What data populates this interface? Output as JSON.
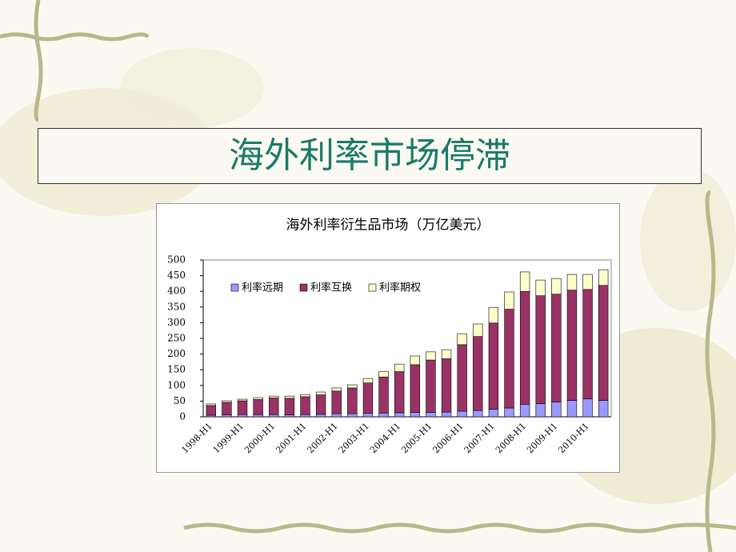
{
  "slide": {
    "title": "海外利率市场停滞"
  },
  "chart_data": {
    "type": "stacked_bar",
    "title": "海外利率衍生品市场（万亿美元）",
    "categories": [
      "1998-H1",
      null,
      "1999-H1",
      null,
      "2000-H1",
      null,
      "2001-H1",
      null,
      "2002-H1",
      null,
      "2003-H1",
      null,
      "2004-H1",
      null,
      "2005-H1",
      null,
      "2006-H1",
      null,
      "2007-H1",
      null,
      "2008-H1",
      null,
      "2009-H1",
      null,
      "2010-H1",
      null
    ],
    "series": [
      {
        "name": "利率远期",
        "color": "#9999ff",
        "values": [
          5,
          6,
          7,
          7,
          7,
          6,
          7,
          8,
          10,
          10,
          11,
          12,
          13,
          14,
          14,
          15,
          18,
          20,
          24,
          28,
          40,
          42,
          47,
          52,
          57,
          52
        ]
      },
      {
        "name": "利率互换",
        "color": "#993366",
        "values": [
          31,
          40,
          44,
          48,
          53,
          53,
          57,
          62,
          72,
          82,
          97,
          115,
          131,
          152,
          167,
          170,
          212,
          236,
          275,
          315,
          360,
          344,
          344,
          352,
          349,
          367
        ]
      },
      {
        "name": "利率期权",
        "color": "#ffffcc",
        "values": [
          5,
          5,
          5,
          6,
          6,
          7,
          7,
          9,
          10,
          10,
          14,
          18,
          24,
          28,
          26,
          29,
          35,
          40,
          50,
          55,
          62,
          50,
          50,
          50,
          48,
          50
        ]
      }
    ],
    "ylim": [
      0,
      500
    ],
    "yticks": [
      0,
      50,
      100,
      150,
      200,
      250,
      300,
      350,
      400,
      450,
      500
    ],
    "grid": false,
    "legend": "upper left"
  }
}
